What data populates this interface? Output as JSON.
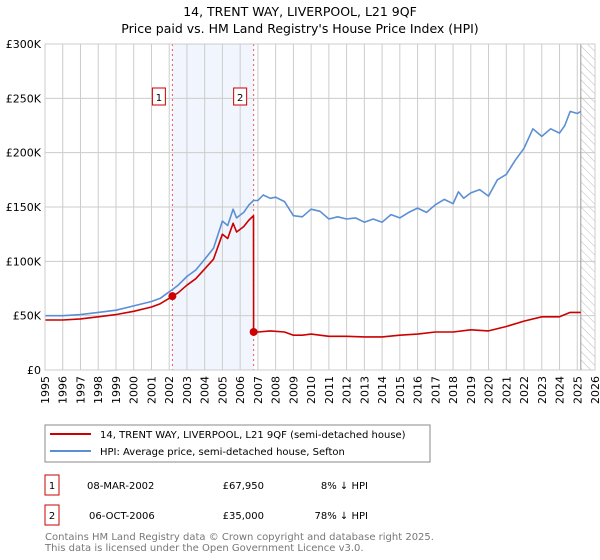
{
  "chart_data": {
    "type": "line",
    "title": "14, TRENT WAY, LIVERPOOL, L21 9QF",
    "subtitle": "Price paid vs. HM Land Registry's House Price Index (HPI)",
    "xlabel": "",
    "ylabel": "",
    "xlim": [
      1995,
      2026
    ],
    "ylim": [
      0,
      300000
    ],
    "grid": true,
    "y_ticks": [
      0,
      50000,
      100000,
      150000,
      200000,
      250000,
      300000
    ],
    "y_tick_labels": [
      "£0",
      "£50K",
      "£100K",
      "£150K",
      "£200K",
      "£250K",
      "£300K"
    ],
    "x_ticks": [
      "1995",
      "1996",
      "1997",
      "1998",
      "1999",
      "2000",
      "2001",
      "2002",
      "2003",
      "2004",
      "2005",
      "2006",
      "2007",
      "2008",
      "2009",
      "2010",
      "2011",
      "2012",
      "2013",
      "2014",
      "2015",
      "2016",
      "2017",
      "2018",
      "2019",
      "2020",
      "2021",
      "2022",
      "2023",
      "2024",
      "2025",
      "2026"
    ],
    "shaded_range": [
      2002.18,
      2006.76
    ],
    "forecast_hatch_from": 2025.2,
    "series": [
      {
        "name": "14, TRENT WAY, LIVERPOOL, L21 9QF (semi-detached house)",
        "color": "#cc0000",
        "points": [
          [
            1995,
            46000
          ],
          [
            1996,
            46000
          ],
          [
            1997,
            47000
          ],
          [
            1998,
            49000
          ],
          [
            1999,
            51000
          ],
          [
            2000,
            54000
          ],
          [
            2001,
            58000
          ],
          [
            2001.5,
            61000
          ],
          [
            2002,
            66000
          ],
          [
            2002.18,
            67950
          ],
          [
            2002.5,
            71000
          ],
          [
            2003,
            78000
          ],
          [
            2003.5,
            84000
          ],
          [
            2004,
            93000
          ],
          [
            2004.5,
            102000
          ],
          [
            2005,
            125000
          ],
          [
            2005.3,
            121000
          ],
          [
            2005.6,
            135000
          ],
          [
            2005.8,
            127000
          ],
          [
            2006.2,
            132000
          ],
          [
            2006.5,
            138000
          ],
          [
            2006.75,
            142000
          ],
          [
            2006.76,
            35000
          ],
          [
            2007,
            35000
          ],
          [
            2007.7,
            36000
          ],
          [
            2008.5,
            35000
          ],
          [
            2009,
            32000
          ],
          [
            2009.5,
            32000
          ],
          [
            2010,
            33000
          ],
          [
            2011,
            31000
          ],
          [
            2012,
            31000
          ],
          [
            2013,
            30500
          ],
          [
            2014,
            30500
          ],
          [
            2015,
            32000
          ],
          [
            2016,
            33000
          ],
          [
            2017,
            35000
          ],
          [
            2018,
            35000
          ],
          [
            2019,
            37000
          ],
          [
            2020,
            36000
          ],
          [
            2021,
            40000
          ],
          [
            2022,
            45000
          ],
          [
            2023,
            49000
          ],
          [
            2024,
            49000
          ],
          [
            2024.6,
            53000
          ],
          [
            2025.2,
            53000
          ]
        ]
      },
      {
        "name": "HPI: Average price, semi-detached house, Sefton",
        "color": "#5b8fd4",
        "points": [
          [
            1995,
            50000
          ],
          [
            1996,
            50000
          ],
          [
            1997,
            51000
          ],
          [
            1998,
            53000
          ],
          [
            1999,
            55000
          ],
          [
            2000,
            59000
          ],
          [
            2001,
            63000
          ],
          [
            2001.5,
            66000
          ],
          [
            2002,
            72000
          ],
          [
            2002.18,
            74000
          ],
          [
            2002.5,
            78000
          ],
          [
            2003,
            86000
          ],
          [
            2003.5,
            92000
          ],
          [
            2004,
            102000
          ],
          [
            2004.5,
            112000
          ],
          [
            2005,
            137000
          ],
          [
            2005.3,
            133000
          ],
          [
            2005.6,
            148000
          ],
          [
            2005.8,
            140000
          ],
          [
            2006.2,
            145000
          ],
          [
            2006.5,
            152000
          ],
          [
            2006.76,
            156000
          ],
          [
            2007,
            156000
          ],
          [
            2007.3,
            161000
          ],
          [
            2007.7,
            158000
          ],
          [
            2008,
            159000
          ],
          [
            2008.5,
            155000
          ],
          [
            2009,
            142000
          ],
          [
            2009.5,
            141000
          ],
          [
            2010,
            148000
          ],
          [
            2010.5,
            146000
          ],
          [
            2011,
            139000
          ],
          [
            2011.5,
            141000
          ],
          [
            2012,
            139000
          ],
          [
            2012.5,
            140000
          ],
          [
            2013,
            136000
          ],
          [
            2013.5,
            139000
          ],
          [
            2014,
            136000
          ],
          [
            2014.5,
            143000
          ],
          [
            2015,
            140000
          ],
          [
            2015.5,
            145000
          ],
          [
            2016,
            149000
          ],
          [
            2016.5,
            145000
          ],
          [
            2017,
            152000
          ],
          [
            2017.5,
            157000
          ],
          [
            2018,
            153000
          ],
          [
            2018.3,
            164000
          ],
          [
            2018.6,
            158000
          ],
          [
            2019,
            163000
          ],
          [
            2019.5,
            166000
          ],
          [
            2020,
            160000
          ],
          [
            2020.5,
            175000
          ],
          [
            2021,
            180000
          ],
          [
            2021.5,
            193000
          ],
          [
            2022,
            204000
          ],
          [
            2022.5,
            222000
          ],
          [
            2023,
            215000
          ],
          [
            2023.5,
            222000
          ],
          [
            2024,
            218000
          ],
          [
            2024.3,
            225000
          ],
          [
            2024.6,
            238000
          ],
          [
            2025,
            236000
          ],
          [
            2025.2,
            238000
          ]
        ]
      }
    ],
    "annotations": [
      {
        "label": "1",
        "x": 2002.18,
        "y": 67950
      },
      {
        "label": "2",
        "x": 2006.76,
        "y": 35000
      }
    ]
  },
  "legend": {
    "items": [
      "14, TRENT WAY, LIVERPOOL, L21 9QF (semi-detached house)",
      "HPI: Average price, semi-detached house, Sefton"
    ]
  },
  "transactions": [
    {
      "num": "1",
      "date": "08-MAR-2002",
      "price": "£67,950",
      "delta": "8% ↓ HPI"
    },
    {
      "num": "2",
      "date": "06-OCT-2006",
      "price": "£35,000",
      "delta": "78% ↓ HPI"
    }
  ],
  "footer": {
    "line1": "Contains HM Land Registry data © Crown copyright and database right 2025.",
    "line2": "This data is licensed under the Open Government Licence v3.0."
  }
}
